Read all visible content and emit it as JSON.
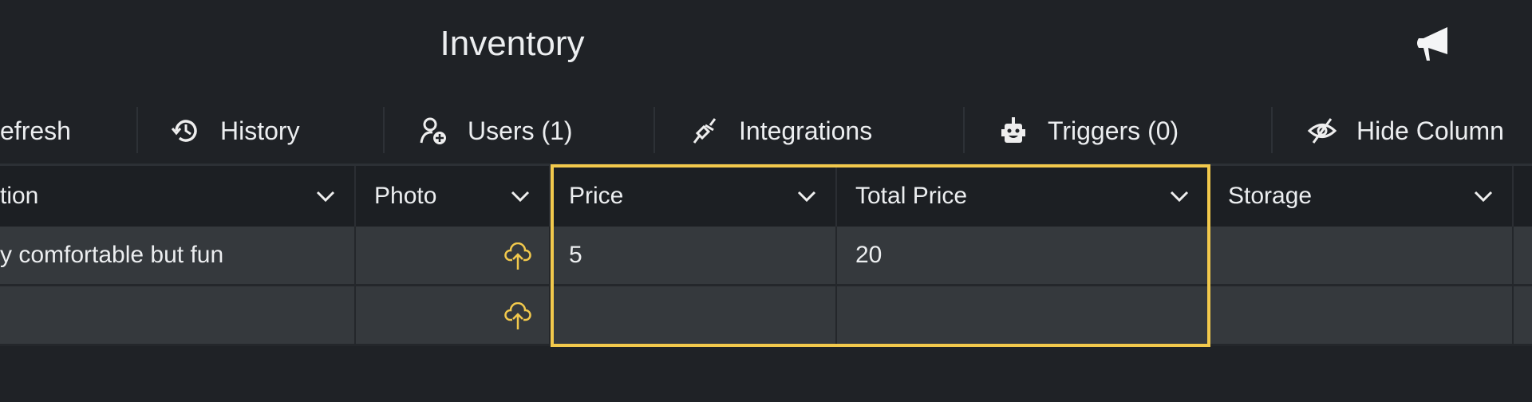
{
  "header": {
    "title": "Inventory",
    "announcement_icon": "megaphone-icon"
  },
  "toolbar": {
    "items": [
      {
        "label": "efresh",
        "icon": "refresh-icon"
      },
      {
        "label": "History",
        "icon": "history-icon"
      },
      {
        "label": "Users (1)",
        "icon": "user-add-icon"
      },
      {
        "label": "Integrations",
        "icon": "plug-icon"
      },
      {
        "label": "Triggers (0)",
        "icon": "robot-icon"
      },
      {
        "label": "Hide Column",
        "icon": "eye-off-icon"
      }
    ]
  },
  "table": {
    "columns": [
      "tion",
      "Photo",
      "Price",
      "Total Price",
      "Storage"
    ],
    "rows": [
      [
        "y comfortable but fun",
        "",
        "5",
        "20",
        ""
      ],
      [
        "",
        "",
        "",
        "",
        ""
      ]
    ],
    "highlighted_columns": [
      "Price",
      "Total Price"
    ]
  },
  "colors": {
    "accent": "#f2c94c",
    "background": "#1f2226",
    "row": "#35393d"
  }
}
